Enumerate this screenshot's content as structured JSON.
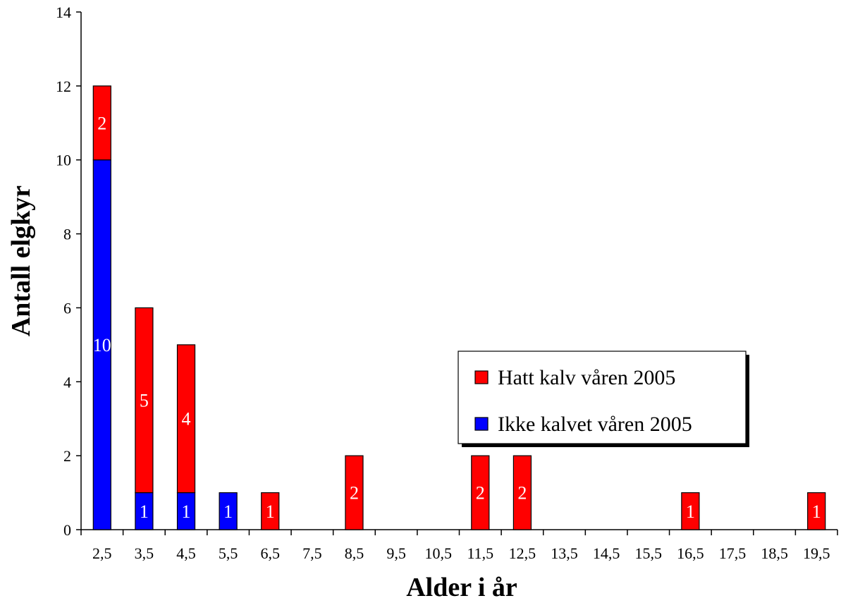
{
  "chart_data": {
    "type": "bar",
    "stacked": true,
    "xlabel": "Alder i år",
    "ylabel": "Antall elgkyr",
    "ylim": [
      0,
      14
    ],
    "yticks": [
      0,
      2,
      4,
      6,
      8,
      10,
      12,
      14
    ],
    "grid": false,
    "legend_position": "right",
    "categories": [
      "2,5",
      "3,5",
      "4,5",
      "5,5",
      "6,5",
      "7,5",
      "8,5",
      "9,5",
      "10,5",
      "11,5",
      "12,5",
      "13,5",
      "14,5",
      "15,5",
      "16,5",
      "17,5",
      "18,5",
      "19,5"
    ],
    "series": [
      {
        "name": "Ikke kalvet våren 2005",
        "color": "#0000ff",
        "values": [
          10,
          1,
          1,
          1,
          0,
          0,
          0,
          0,
          0,
          0,
          0,
          0,
          0,
          0,
          0,
          0,
          0,
          0
        ]
      },
      {
        "name": "Hatt kalv våren 2005",
        "color": "#ff0000",
        "values": [
          2,
          5,
          4,
          0,
          1,
          0,
          2,
          0,
          0,
          2,
          2,
          0,
          0,
          0,
          1,
          0,
          0,
          1
        ]
      }
    ],
    "legend_order": [
      "Hatt kalv våren 2005",
      "Ikke kalvet våren 2005"
    ]
  }
}
